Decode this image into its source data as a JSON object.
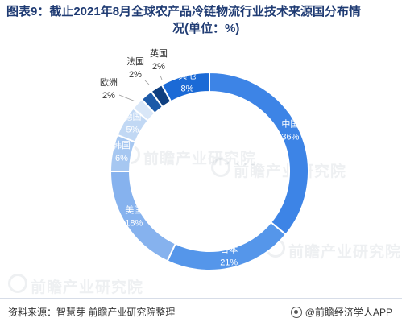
{
  "title_line1": "图表9：截止2021年8月全球农产品冷链物流行业技术来源国分布情",
  "title_line2": "况(单位：%)",
  "chart_data": {
    "type": "pie",
    "variant": "donut",
    "unit": "%",
    "slices": [
      {
        "label": "中国",
        "value": 36,
        "value_label": "36%",
        "color": "#3d84e6"
      },
      {
        "label": "日本",
        "value": 21,
        "value_label": "21%",
        "color": "#5596ea"
      },
      {
        "label": "美国",
        "value": 18,
        "value_label": "18%",
        "color": "#86b2ee"
      },
      {
        "label": "韩国",
        "value": 6,
        "value_label": "6%",
        "color": "#a6c7f1"
      },
      {
        "label": "德国",
        "value": 5,
        "value_label": "5%",
        "color": "#c1d8f4"
      },
      {
        "label": "欧洲",
        "value": 2,
        "value_label": "2%",
        "color": "#d9e7f8"
      },
      {
        "label": "法国",
        "value": 2,
        "value_label": "2%",
        "color": "#1d5aa8"
      },
      {
        "label": "英国",
        "value": 2,
        "value_label": "2%",
        "color": "#0f3f80"
      },
      {
        "label": "其他",
        "value": 8,
        "value_label": "8%",
        "color": "#1b6ad6"
      }
    ]
  },
  "footer": {
    "source": "资料来源：智慧芽 前瞻产业研究院整理",
    "brand": "@前瞻经济学人APP"
  },
  "watermark_text": "前瞻产业研究院"
}
